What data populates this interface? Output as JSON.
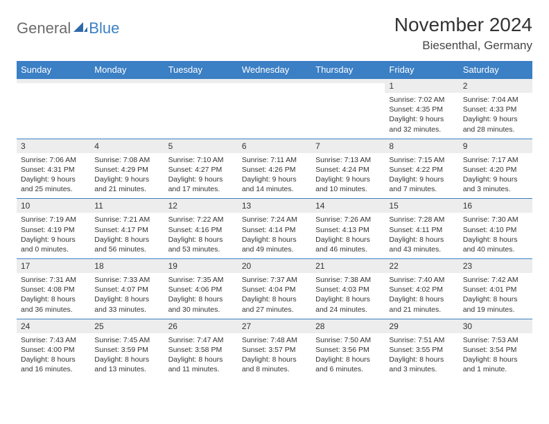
{
  "logo": {
    "text1": "General",
    "text2": "Blue",
    "icon_color": "#2f6aa8"
  },
  "title": "November 2024",
  "location": "Biesenthal, Germany",
  "colors": {
    "header_bg": "#3b7fc4",
    "header_fg": "#ffffff",
    "daynum_bg": "#ededed",
    "border": "#3b7fc4",
    "text": "#333333",
    "logo_gray": "#6b6b6b",
    "logo_blue": "#3b7fc4"
  },
  "weekdays": [
    "Sunday",
    "Monday",
    "Tuesday",
    "Wednesday",
    "Thursday",
    "Friday",
    "Saturday"
  ],
  "weeks": [
    [
      {
        "n": "",
        "sr": "",
        "ss": "",
        "dl": ""
      },
      {
        "n": "",
        "sr": "",
        "ss": "",
        "dl": ""
      },
      {
        "n": "",
        "sr": "",
        "ss": "",
        "dl": ""
      },
      {
        "n": "",
        "sr": "",
        "ss": "",
        "dl": ""
      },
      {
        "n": "",
        "sr": "",
        "ss": "",
        "dl": ""
      },
      {
        "n": "1",
        "sr": "Sunrise: 7:02 AM",
        "ss": "Sunset: 4:35 PM",
        "dl": "Daylight: 9 hours and 32 minutes."
      },
      {
        "n": "2",
        "sr": "Sunrise: 7:04 AM",
        "ss": "Sunset: 4:33 PM",
        "dl": "Daylight: 9 hours and 28 minutes."
      }
    ],
    [
      {
        "n": "3",
        "sr": "Sunrise: 7:06 AM",
        "ss": "Sunset: 4:31 PM",
        "dl": "Daylight: 9 hours and 25 minutes."
      },
      {
        "n": "4",
        "sr": "Sunrise: 7:08 AM",
        "ss": "Sunset: 4:29 PM",
        "dl": "Daylight: 9 hours and 21 minutes."
      },
      {
        "n": "5",
        "sr": "Sunrise: 7:10 AM",
        "ss": "Sunset: 4:27 PM",
        "dl": "Daylight: 9 hours and 17 minutes."
      },
      {
        "n": "6",
        "sr": "Sunrise: 7:11 AM",
        "ss": "Sunset: 4:26 PM",
        "dl": "Daylight: 9 hours and 14 minutes."
      },
      {
        "n": "7",
        "sr": "Sunrise: 7:13 AM",
        "ss": "Sunset: 4:24 PM",
        "dl": "Daylight: 9 hours and 10 minutes."
      },
      {
        "n": "8",
        "sr": "Sunrise: 7:15 AM",
        "ss": "Sunset: 4:22 PM",
        "dl": "Daylight: 9 hours and 7 minutes."
      },
      {
        "n": "9",
        "sr": "Sunrise: 7:17 AM",
        "ss": "Sunset: 4:20 PM",
        "dl": "Daylight: 9 hours and 3 minutes."
      }
    ],
    [
      {
        "n": "10",
        "sr": "Sunrise: 7:19 AM",
        "ss": "Sunset: 4:19 PM",
        "dl": "Daylight: 9 hours and 0 minutes."
      },
      {
        "n": "11",
        "sr": "Sunrise: 7:21 AM",
        "ss": "Sunset: 4:17 PM",
        "dl": "Daylight: 8 hours and 56 minutes."
      },
      {
        "n": "12",
        "sr": "Sunrise: 7:22 AM",
        "ss": "Sunset: 4:16 PM",
        "dl": "Daylight: 8 hours and 53 minutes."
      },
      {
        "n": "13",
        "sr": "Sunrise: 7:24 AM",
        "ss": "Sunset: 4:14 PM",
        "dl": "Daylight: 8 hours and 49 minutes."
      },
      {
        "n": "14",
        "sr": "Sunrise: 7:26 AM",
        "ss": "Sunset: 4:13 PM",
        "dl": "Daylight: 8 hours and 46 minutes."
      },
      {
        "n": "15",
        "sr": "Sunrise: 7:28 AM",
        "ss": "Sunset: 4:11 PM",
        "dl": "Daylight: 8 hours and 43 minutes."
      },
      {
        "n": "16",
        "sr": "Sunrise: 7:30 AM",
        "ss": "Sunset: 4:10 PM",
        "dl": "Daylight: 8 hours and 40 minutes."
      }
    ],
    [
      {
        "n": "17",
        "sr": "Sunrise: 7:31 AM",
        "ss": "Sunset: 4:08 PM",
        "dl": "Daylight: 8 hours and 36 minutes."
      },
      {
        "n": "18",
        "sr": "Sunrise: 7:33 AM",
        "ss": "Sunset: 4:07 PM",
        "dl": "Daylight: 8 hours and 33 minutes."
      },
      {
        "n": "19",
        "sr": "Sunrise: 7:35 AM",
        "ss": "Sunset: 4:06 PM",
        "dl": "Daylight: 8 hours and 30 minutes."
      },
      {
        "n": "20",
        "sr": "Sunrise: 7:37 AM",
        "ss": "Sunset: 4:04 PM",
        "dl": "Daylight: 8 hours and 27 minutes."
      },
      {
        "n": "21",
        "sr": "Sunrise: 7:38 AM",
        "ss": "Sunset: 4:03 PM",
        "dl": "Daylight: 8 hours and 24 minutes."
      },
      {
        "n": "22",
        "sr": "Sunrise: 7:40 AM",
        "ss": "Sunset: 4:02 PM",
        "dl": "Daylight: 8 hours and 21 minutes."
      },
      {
        "n": "23",
        "sr": "Sunrise: 7:42 AM",
        "ss": "Sunset: 4:01 PM",
        "dl": "Daylight: 8 hours and 19 minutes."
      }
    ],
    [
      {
        "n": "24",
        "sr": "Sunrise: 7:43 AM",
        "ss": "Sunset: 4:00 PM",
        "dl": "Daylight: 8 hours and 16 minutes."
      },
      {
        "n": "25",
        "sr": "Sunrise: 7:45 AM",
        "ss": "Sunset: 3:59 PM",
        "dl": "Daylight: 8 hours and 13 minutes."
      },
      {
        "n": "26",
        "sr": "Sunrise: 7:47 AM",
        "ss": "Sunset: 3:58 PM",
        "dl": "Daylight: 8 hours and 11 minutes."
      },
      {
        "n": "27",
        "sr": "Sunrise: 7:48 AM",
        "ss": "Sunset: 3:57 PM",
        "dl": "Daylight: 8 hours and 8 minutes."
      },
      {
        "n": "28",
        "sr": "Sunrise: 7:50 AM",
        "ss": "Sunset: 3:56 PM",
        "dl": "Daylight: 8 hours and 6 minutes."
      },
      {
        "n": "29",
        "sr": "Sunrise: 7:51 AM",
        "ss": "Sunset: 3:55 PM",
        "dl": "Daylight: 8 hours and 3 minutes."
      },
      {
        "n": "30",
        "sr": "Sunrise: 7:53 AM",
        "ss": "Sunset: 3:54 PM",
        "dl": "Daylight: 8 hours and 1 minute."
      }
    ]
  ]
}
